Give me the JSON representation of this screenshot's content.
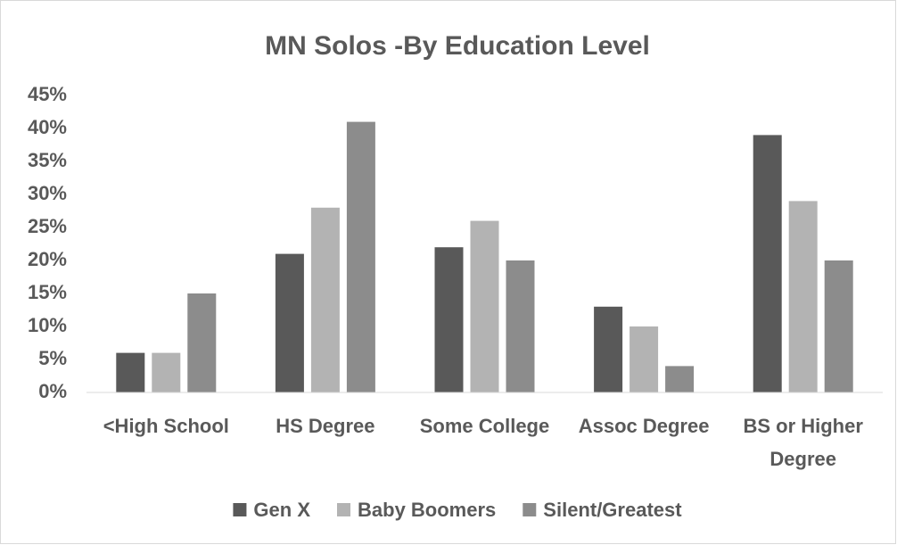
{
  "chart_data": {
    "type": "bar",
    "title": "MN Solos -By Education Level",
    "categories": [
      "<High School",
      "HS Degree",
      "Some College",
      "Assoc Degree",
      "BS or Higher Degree"
    ],
    "series": [
      {
        "name": "Gen X",
        "color": "#595959",
        "values": [
          6,
          21,
          22,
          13,
          39
        ]
      },
      {
        "name": "Baby Boomers",
        "color": "#b3b3b3",
        "values": [
          6,
          28,
          26,
          10,
          29
        ]
      },
      {
        "name": "Silent/Greatest",
        "color": "#8c8c8c",
        "values": [
          15,
          41,
          20,
          4,
          20
        ]
      }
    ],
    "ylim": [
      0,
      45
    ],
    "yticks": [
      {
        "value": 0,
        "label": "0%"
      },
      {
        "value": 5,
        "label": "5%"
      },
      {
        "value": 10,
        "label": "10%"
      },
      {
        "value": 15,
        "label": "15%"
      },
      {
        "value": 20,
        "label": "20%"
      },
      {
        "value": 25,
        "label": "25%"
      },
      {
        "value": 30,
        "label": "30%"
      },
      {
        "value": 35,
        "label": "35%"
      },
      {
        "value": 40,
        "label": "40%"
      },
      {
        "value": 45,
        "label": "45%"
      }
    ],
    "grid": false,
    "legend": "bottom"
  }
}
